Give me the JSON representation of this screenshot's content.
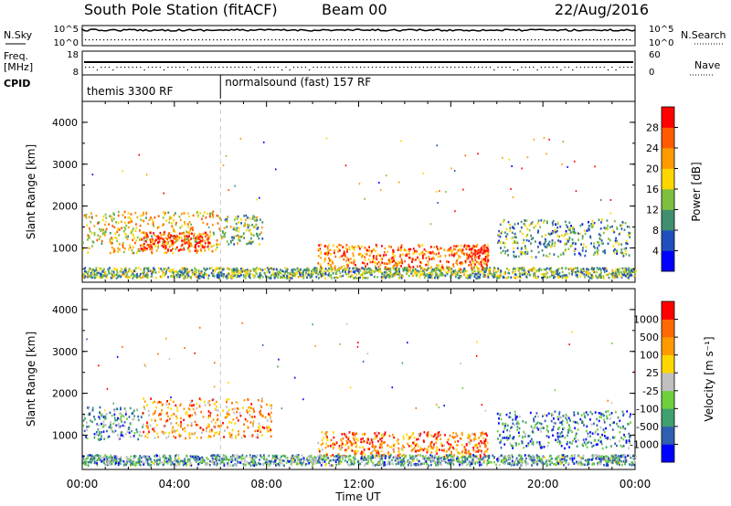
{
  "header": {
    "station": "South Pole Station (fitACF)",
    "beam": "Beam 00",
    "date": "22/Aug/2016"
  },
  "chart_data": [
    {
      "type": "line",
      "panel": "noise",
      "left_label": "N.Sky",
      "right_label": "N.Search",
      "left_ticks": [
        "10^5",
        "10^0"
      ],
      "right_ticks": [
        "10^5",
        "10^0"
      ],
      "x_range_hours": [
        0,
        24
      ]
    },
    {
      "type": "scatter",
      "panel": "frequency",
      "left_label": "Freq.",
      "left_unit": "[MHz]",
      "left_ticks": [
        "18",
        "8"
      ],
      "right_label": "Nave",
      "right_ticks": [
        "60",
        "0"
      ],
      "cpid_label": "CPID",
      "cpid_segments": [
        {
          "label": "themis 3300 RF",
          "start_hour": 0,
          "end_hour": 6
        },
        {
          "label": "normalsound (fast) 157 RF",
          "start_hour": 6,
          "end_hour": 24
        }
      ]
    },
    {
      "type": "heatmap",
      "panel": "power",
      "ylabel": "Slant Range [km]",
      "ylim": [
        180,
        4500
      ],
      "y_ticks": [
        "4000",
        "3000",
        "2000",
        "1000"
      ],
      "colorbar_label": "Power [dB]",
      "colorbar_ticks": [
        "28",
        "24",
        "20",
        "16",
        "12",
        "8",
        "4"
      ],
      "colors": [
        "#0000ff",
        "#1f4fbf",
        "#3f8f6f",
        "#7fbf3f",
        "#ffd700",
        "#ff9a00",
        "#ff5a00",
        "#ff0000"
      ],
      "regions": [
        {
          "t0": 0.0,
          "t1": 6.0,
          "r0": 900,
          "r1": 1900,
          "level": 0.6
        },
        {
          "t0": 2.5,
          "t1": 5.5,
          "r0": 950,
          "r1": 1400,
          "level": 0.85
        },
        {
          "t0": 6.0,
          "t1": 7.8,
          "r0": 1100,
          "r1": 1800,
          "level": 0.45
        },
        {
          "t0": 10.2,
          "t1": 17.6,
          "r0": 500,
          "r1": 1100,
          "level": 0.75
        },
        {
          "t0": 16.7,
          "t1": 17.6,
          "r0": 600,
          "r1": 1100,
          "level": 0.95
        },
        {
          "t0": 18.0,
          "t1": 23.8,
          "r0": 800,
          "r1": 1700,
          "level": 0.35
        },
        {
          "t0": 0.0,
          "t1": 24.0,
          "r0": 300,
          "r1": 550,
          "level": 0.4
        }
      ]
    },
    {
      "type": "heatmap",
      "panel": "velocity",
      "ylabel": "Slant Range [km]",
      "ylim": [
        180,
        4500
      ],
      "y_ticks": [
        "4000",
        "3000",
        "2000",
        "1000"
      ],
      "xlabel": "Time UT",
      "x_ticks": [
        "00:00",
        "04:00",
        "08:00",
        "12:00",
        "16:00",
        "20:00",
        "00:00"
      ],
      "colorbar_label": "Velocity [m s⁻¹]",
      "colorbar_ticks": [
        "1000",
        "500",
        "100",
        "25",
        "-25",
        "-100",
        "-500",
        "-1000"
      ],
      "colors": [
        "#0000ff",
        "#2f5fb0",
        "#3f9f6f",
        "#6fcf3f",
        "#c0c0c0",
        "#ffd700",
        "#ff9a00",
        "#ff6a00",
        "#ff0000"
      ],
      "regions": [
        {
          "t0": 0.0,
          "t1": 2.6,
          "r0": 900,
          "r1": 1700,
          "level": 0.3
        },
        {
          "t0": 2.6,
          "t1": 8.2,
          "r0": 950,
          "r1": 1900,
          "level": 0.72
        },
        {
          "t0": 10.2,
          "t1": 17.6,
          "r0": 500,
          "r1": 1100,
          "level": 0.78
        },
        {
          "t0": 18.0,
          "t1": 23.8,
          "r0": 700,
          "r1": 1600,
          "level": 0.25
        },
        {
          "t0": 0.0,
          "t1": 24.0,
          "r0": 300,
          "r1": 550,
          "level": 0.32
        }
      ]
    }
  ]
}
